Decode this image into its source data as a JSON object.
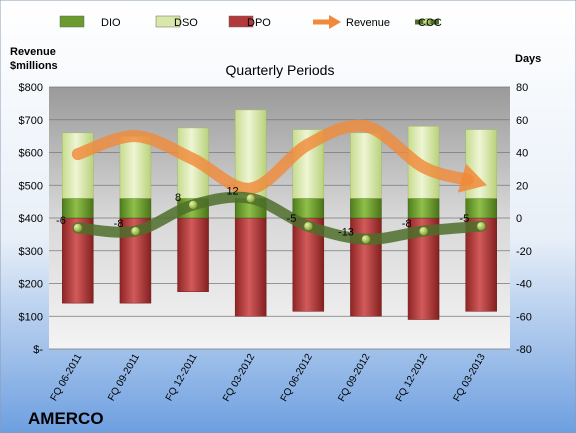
{
  "chart_data": {
    "type": "bar",
    "title": "Quarterly Periods",
    "company": "AMERCO",
    "left_axis_title": [
      "Revenue",
      "$millions"
    ],
    "right_axis_title": "Days",
    "left_ticks": [
      "$-",
      "$100",
      "$200",
      "$300",
      "$400",
      "$500",
      "$600",
      "$700",
      "$800"
    ],
    "right_ticks": [
      "-80",
      "-60",
      "-40",
      "-20",
      "0",
      "20",
      "40",
      "60",
      "80"
    ],
    "left_range": [
      0,
      800
    ],
    "right_range": [
      -80,
      80
    ],
    "categories": [
      "FQ 06-2011",
      "FQ 09-2011",
      "FQ 12-2011",
      "FQ 03-2012",
      "FQ 06-2012",
      "FQ 09-2012",
      "FQ 12-2012",
      "FQ 03-2013"
    ],
    "legend": [
      {
        "name": "DIO",
        "color": "#6b9a2e"
      },
      {
        "name": "DSO",
        "color": "#d8e8a8"
      },
      {
        "name": "DPO",
        "color": "#b33a3a"
      },
      {
        "name": "Revenue",
        "color": "#f08a3a"
      },
      {
        "name": "CCC",
        "color": "#4d6e2a"
      }
    ],
    "series": [
      {
        "name": "DPO",
        "axis": "days",
        "values": [
          -52,
          -52,
          -45,
          -60,
          -57,
          -60,
          -62,
          -57
        ]
      },
      {
        "name": "DIO",
        "axis": "days",
        "values": [
          12,
          12,
          12,
          12,
          12,
          12,
          12,
          12
        ]
      },
      {
        "name": "DSO",
        "axis": "days",
        "values": [
          40,
          38,
          43,
          54,
          42,
          40,
          44,
          42
        ]
      },
      {
        "name": "Revenue",
        "axis": "revenue",
        "values": [
          595,
          650,
          580,
          490,
          625,
          680,
          555,
          505
        ]
      },
      {
        "name": "CCC",
        "axis": "days",
        "values": [
          -6,
          -8,
          8,
          12,
          -5,
          -13,
          -8,
          -5
        ]
      }
    ],
    "ccc_labels": [
      "-6",
      "-8",
      "8",
      "12",
      "-5",
      "-13",
      "-8",
      "-5"
    ]
  }
}
